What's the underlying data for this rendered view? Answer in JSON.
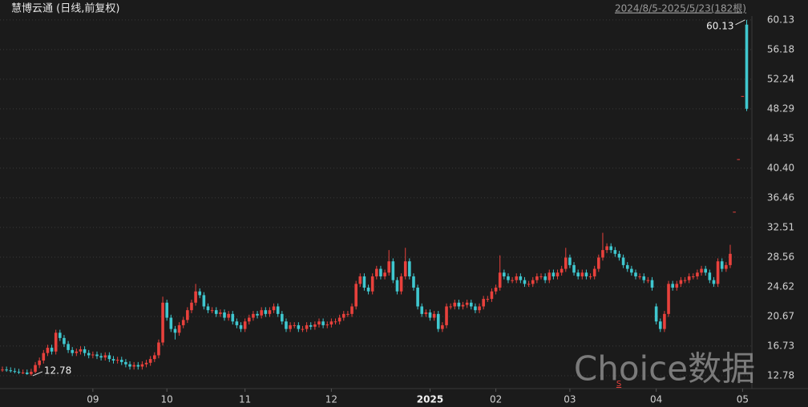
{
  "chart_data": {
    "type": "candlestick",
    "title": "慧博云通 (日线,前复权)",
    "subtitle": "2024/8/5-2025/5/23(182根)",
    "watermark": "Choice数据",
    "signal": "S",
    "up_color": "#e8413c",
    "down_color": "#3fc7cf",
    "ylim": [
      11.07,
      60.43
    ],
    "yticks": [
      12.78,
      16.73,
      20.67,
      24.62,
      28.56,
      32.51,
      36.46,
      {
        "value": 40.4,
        "label": "40.40"
      },
      44.35,
      48.29,
      52.24,
      56.18,
      60.13
    ],
    "xlim": [
      0,
      181
    ],
    "xticks": [
      {
        "value": 22,
        "label": "09"
      },
      {
        "value": 40,
        "label": "10"
      },
      {
        "value": 59,
        "label": "11"
      },
      {
        "value": 80,
        "label": "12"
      },
      {
        "value": 104,
        "label": "2025"
      },
      {
        "value": 120,
        "label": "02"
      },
      {
        "value": 138,
        "label": "03"
      },
      {
        "value": 159,
        "label": "04"
      },
      {
        "value": 180,
        "label": "05"
      }
    ],
    "grid": true,
    "open": [
      13.5,
      13.6,
      13.5,
      13.4,
      13.3,
      13.2,
      13.2,
      13.0,
      13.3,
      14.2,
      14.8,
      15.8,
      16.5,
      16.0,
      18.5,
      17.8,
      17.0,
      16.2,
      15.8,
      16.0,
      16.3,
      15.8,
      15.5,
      15.6,
      15.4,
      15.2,
      15.5,
      15.0,
      14.8,
      14.9,
      14.6,
      14.3,
      14.0,
      14.2,
      14.0,
      14.3,
      14.5,
      15.0,
      15.5,
      17.2,
      22.5,
      20.5,
      19.0,
      18.5,
      19.5,
      20.2,
      21.5,
      22.5,
      24.0,
      23.5,
      22.0,
      21.5,
      21.5,
      21.0,
      21.2,
      20.5,
      21.0,
      20.0,
      19.5,
      19.0,
      20.0,
      20.5,
      21.0,
      20.8,
      21.5,
      21.0,
      21.5,
      22.0,
      21.0,
      20.0,
      19.0,
      19.5,
      19.5,
      19.0,
      19.0,
      19.5,
      19.3,
      19.6,
      20.0,
      19.5,
      19.6,
      20.0,
      20.0,
      20.5,
      21.0,
      21.0,
      22.0,
      25.0,
      26.0,
      24.5,
      24.0,
      26.0,
      27.0,
      26.0,
      26.5,
      28.0,
      25.5,
      24.0,
      26.0,
      28.0,
      26.0,
      24.5,
      22.0,
      21.0,
      21.2,
      20.5,
      21.0,
      19.0,
      19.5,
      22.0,
      22.0,
      22.5,
      22.0,
      22.2,
      22.5,
      22.0,
      21.5,
      22.0,
      23.0,
      23.0,
      24.0,
      24.5,
      26.5,
      26.0,
      25.5,
      25.5,
      26.0,
      25.5,
      25.0,
      25.0,
      25.5,
      26.0,
      26.0,
      25.5,
      26.5,
      26.0,
      26.5,
      27.0,
      28.5,
      27.5,
      26.5,
      26.0,
      26.5,
      26.0,
      26.0,
      27.0,
      28.5,
      29.5,
      30.0,
      29.5,
      29.0,
      28.5,
      27.5,
      27.0,
      26.5,
      26.0,
      26.0,
      25.5,
      25.5,
      22.0,
      20.0,
      19.0,
      21.0,
      25.0,
      24.5,
      25.0,
      25.5,
      25.5,
      26.0,
      26.0,
      26.5,
      27.0,
      26.5,
      25.5,
      25.0,
      28.0,
      27.0,
      27.5,
      34.6,
      41.6,
      50.0,
      59.5
    ],
    "high": [
      14.0,
      14.0,
      13.9,
      13.8,
      13.7,
      13.6,
      13.6,
      13.7,
      14.6,
      15.2,
      16.2,
      16.9,
      16.9,
      18.9,
      18.9,
      18.2,
      17.4,
      16.6,
      16.4,
      16.7,
      16.7,
      16.2,
      16.0,
      16.0,
      15.8,
      15.9,
      15.9,
      15.4,
      15.3,
      15.3,
      15.0,
      14.7,
      14.6,
      14.6,
      14.7,
      14.9,
      15.4,
      15.9,
      17.6,
      23.3,
      22.9,
      20.9,
      19.4,
      19.9,
      20.6,
      21.9,
      22.9,
      25.0,
      24.4,
      23.9,
      22.4,
      21.9,
      21.9,
      21.6,
      21.6,
      21.4,
      21.4,
      20.4,
      19.9,
      20.4,
      20.9,
      21.4,
      21.4,
      21.9,
      21.9,
      21.9,
      22.4,
      22.4,
      21.4,
      20.4,
      19.9,
      19.9,
      19.9,
      19.4,
      19.9,
      19.9,
      20.0,
      20.4,
      20.4,
      20.0,
      20.4,
      20.4,
      20.9,
      21.4,
      21.4,
      22.4,
      25.4,
      26.4,
      26.4,
      24.9,
      26.4,
      27.4,
      27.4,
      26.9,
      29.5,
      28.4,
      25.9,
      26.4,
      29.8,
      28.4,
      26.4,
      24.9,
      22.4,
      21.6,
      21.6,
      21.4,
      21.4,
      19.9,
      22.4,
      22.4,
      22.9,
      22.9,
      22.6,
      22.9,
      22.9,
      22.4,
      22.4,
      23.4,
      23.4,
      24.4,
      24.9,
      28.8,
      26.9,
      26.4,
      25.9,
      26.4,
      26.4,
      25.9,
      25.4,
      25.9,
      26.4,
      26.4,
      26.4,
      26.9,
      26.9,
      26.9,
      27.4,
      29.8,
      28.9,
      27.9,
      26.9,
      26.9,
      26.9,
      26.4,
      27.4,
      28.9,
      31.8,
      30.4,
      30.4,
      29.9,
      29.4,
      28.9,
      27.9,
      27.4,
      26.9,
      26.4,
      26.4,
      25.9,
      25.9,
      22.4,
      20.4,
      21.4,
      25.4,
      25.4,
      25.4,
      25.9,
      25.9,
      26.4,
      26.4,
      26.9,
      27.4,
      27.4,
      26.9,
      25.9,
      28.4,
      28.4,
      27.9,
      30.2,
      34.6,
      41.6,
      50.0,
      60.13
    ],
    "low": [
      13.3,
      13.3,
      13.2,
      13.1,
      13.0,
      13.0,
      12.9,
      12.78,
      13.1,
      13.8,
      14.4,
      15.4,
      15.6,
      15.6,
      17.4,
      16.6,
      15.8,
      15.4,
      15.4,
      15.6,
      15.4,
      15.1,
      15.1,
      15.0,
      14.8,
      14.8,
      14.6,
      14.4,
      14.4,
      14.2,
      13.9,
      13.6,
      13.6,
      13.6,
      13.6,
      13.9,
      14.1,
      14.6,
      15.1,
      16.8,
      20.1,
      18.6,
      17.6,
      18.1,
      19.1,
      19.8,
      21.1,
      22.1,
      23.1,
      21.6,
      21.1,
      21.1,
      20.6,
      20.6,
      20.1,
      20.1,
      19.6,
      19.1,
      18.6,
      18.6,
      19.6,
      20.1,
      20.4,
      20.4,
      20.6,
      20.6,
      21.1,
      20.6,
      19.6,
      18.6,
      18.6,
      19.1,
      18.6,
      18.6,
      18.6,
      18.9,
      18.9,
      19.2,
      19.1,
      19.1,
      19.2,
      19.6,
      19.6,
      20.1,
      20.6,
      20.6,
      21.6,
      24.6,
      24.1,
      23.6,
      23.6,
      25.6,
      25.6,
      25.6,
      26.1,
      25.1,
      23.6,
      23.6,
      25.6,
      25.6,
      24.1,
      21.6,
      20.6,
      20.6,
      20.1,
      20.1,
      18.6,
      18.6,
      19.1,
      21.6,
      21.6,
      21.6,
      21.6,
      21.8,
      21.6,
      21.1,
      21.1,
      21.6,
      22.6,
      22.6,
      23.6,
      24.1,
      25.6,
      25.1,
      25.1,
      25.1,
      25.1,
      24.6,
      24.6,
      24.6,
      25.1,
      25.6,
      25.1,
      25.1,
      25.6,
      25.6,
      26.1,
      26.6,
      27.1,
      26.1,
      25.6,
      25.6,
      25.6,
      25.6,
      25.6,
      26.6,
      28.1,
      29.1,
      29.1,
      28.6,
      28.1,
      27.1,
      26.6,
      26.1,
      25.6,
      25.6,
      25.1,
      25.1,
      24.1,
      19.6,
      18.6,
      18.6,
      20.6,
      24.1,
      24.1,
      24.6,
      25.1,
      25.1,
      25.6,
      25.6,
      26.1,
      26.1,
      25.1,
      24.6,
      24.6,
      26.6,
      26.6,
      27.1,
      34.6,
      41.6,
      50.0,
      48.0
    ],
    "close": [
      13.6,
      13.5,
      13.4,
      13.3,
      13.2,
      13.2,
      13.0,
      13.3,
      14.2,
      14.8,
      15.8,
      16.5,
      16.0,
      18.5,
      17.8,
      17.0,
      16.2,
      15.8,
      16.0,
      16.3,
      15.8,
      15.5,
      15.6,
      15.4,
      15.2,
      15.5,
      15.0,
      14.8,
      14.9,
      14.6,
      14.3,
      14.0,
      14.2,
      14.0,
      14.3,
      14.5,
      15.0,
      15.5,
      17.2,
      22.5,
      20.5,
      19.0,
      18.5,
      19.5,
      20.2,
      21.5,
      22.5,
      24.0,
      23.5,
      22.0,
      21.5,
      21.5,
      21.0,
      21.2,
      20.5,
      21.0,
      20.0,
      19.5,
      19.0,
      20.0,
      20.5,
      21.0,
      20.8,
      21.5,
      21.0,
      21.5,
      22.0,
      21.0,
      20.0,
      19.0,
      19.5,
      19.5,
      19.0,
      19.0,
      19.5,
      19.3,
      19.6,
      20.0,
      19.5,
      19.6,
      20.0,
      20.0,
      20.5,
      21.0,
      21.0,
      22.0,
      25.0,
      26.0,
      24.5,
      24.0,
      26.0,
      27.0,
      26.0,
      26.5,
      28.0,
      25.5,
      24.0,
      26.0,
      28.0,
      26.0,
      24.5,
      22.0,
      21.0,
      21.2,
      20.5,
      21.0,
      19.0,
      19.5,
      22.0,
      22.0,
      22.5,
      22.0,
      22.2,
      22.5,
      22.0,
      21.5,
      22.0,
      23.0,
      23.0,
      24.0,
      24.5,
      26.5,
      26.0,
      25.5,
      25.5,
      26.0,
      25.5,
      25.0,
      25.0,
      25.5,
      26.0,
      26.0,
      25.5,
      26.5,
      26.0,
      26.5,
      27.0,
      28.5,
      27.5,
      26.5,
      26.0,
      26.5,
      26.0,
      26.0,
      27.0,
      28.5,
      29.5,
      30.0,
      29.5,
      29.0,
      28.5,
      27.5,
      27.0,
      26.5,
      26.0,
      26.0,
      25.5,
      25.5,
      24.5,
      20.0,
      19.0,
      21.0,
      25.0,
      24.5,
      25.0,
      25.5,
      25.5,
      26.0,
      26.0,
      26.5,
      27.0,
      26.5,
      25.5,
      25.0,
      28.0,
      27.0,
      27.5,
      29.0,
      34.6,
      41.6,
      50.0,
      48.3
    ]
  }
}
